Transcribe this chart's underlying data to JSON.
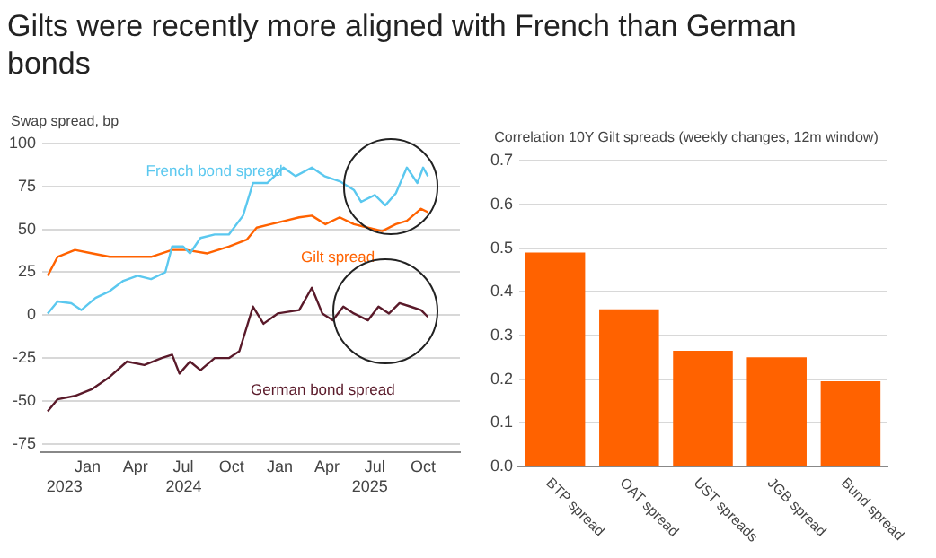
{
  "chart_data": [
    {
      "type": "line",
      "title": "Gilts were recently more aligned with French than German bonds",
      "ylabel": "Swap spread, bp",
      "xlim": [
        "2023-10-05",
        "2025-12-10"
      ],
      "ylim": [
        -80,
        100
      ],
      "yticks": [
        -75,
        -50,
        -25,
        0,
        25,
        50,
        75,
        100
      ],
      "xticks": [
        {
          "value": "2024-01-01",
          "label": "Jan"
        },
        {
          "value": "2024-04-01",
          "label": "Apr"
        },
        {
          "value": "2024-07-01",
          "label": "Jul"
        },
        {
          "value": "2024-10-01",
          "label": "Oct"
        },
        {
          "value": "2025-01-01",
          "label": "Jan"
        },
        {
          "value": "2025-04-01",
          "label": "Apr"
        },
        {
          "value": "2025-07-01",
          "label": "Jul"
        },
        {
          "value": "2025-10-01",
          "label": "Oct"
        }
      ],
      "annotations": [
        "2023",
        "2024",
        "2025"
      ],
      "grid": "y",
      "legend": false,
      "marker": "none",
      "line_style": "solid",
      "series": [
        {
          "name": "French bond spread",
          "color": "#5bc8ef",
          "x": [
            "2023-10-17",
            "2023-11-05",
            "2023-12-01",
            "2023-12-20",
            "2024-01-16",
            "2024-02-12",
            "2024-03-09",
            "2024-04-05",
            "2024-05-01",
            "2024-05-28",
            "2024-06-10",
            "2024-07-01",
            "2024-07-14",
            "2024-08-03",
            "2024-08-30",
            "2024-09-26",
            "2024-10-23",
            "2024-11-11",
            "2024-12-08",
            "2025-01-08",
            "2025-01-31",
            "2025-03-03",
            "2025-03-27",
            "2025-04-25",
            "2025-05-22",
            "2025-06-05",
            "2025-07-01",
            "2025-07-21",
            "2025-08-10",
            "2025-08-31",
            "2025-09-20",
            "2025-10-01",
            "2025-10-10"
          ],
          "values": [
            1,
            8,
            7,
            3,
            10,
            14,
            20,
            23,
            21,
            25,
            40,
            40,
            36,
            45,
            47,
            47,
            58,
            77,
            77,
            86,
            81,
            86,
            81,
            78,
            73,
            66,
            70,
            64,
            71,
            86,
            77,
            86,
            81
          ]
        },
        {
          "name": "Gilt spread",
          "color": "#ff6200",
          "x": [
            "2023-10-17",
            "2023-11-05",
            "2023-12-08",
            "2024-01-10",
            "2024-02-12",
            "2024-03-22",
            "2024-05-01",
            "2024-06-10",
            "2024-07-07",
            "2024-08-16",
            "2024-09-26",
            "2024-10-30",
            "2024-11-18",
            "2024-12-15",
            "2025-01-11",
            "2025-02-07",
            "2025-03-03",
            "2025-03-29",
            "2025-04-25",
            "2025-05-22",
            "2025-06-18",
            "2025-07-15",
            "2025-08-10",
            "2025-08-31",
            "2025-09-27",
            "2025-10-10"
          ],
          "values": [
            23,
            34,
            38,
            36,
            34,
            34,
            34,
            38,
            38,
            36,
            40,
            44,
            51,
            53,
            55,
            57,
            58,
            53,
            57,
            53,
            51,
            49,
            53,
            55,
            62,
            60
          ]
        },
        {
          "name": "German bond spread",
          "color": "#5a1a2a",
          "x": [
            "2023-10-17",
            "2023-11-05",
            "2023-12-08",
            "2024-01-10",
            "2024-02-12",
            "2024-03-16",
            "2024-04-18",
            "2024-05-21",
            "2024-06-10",
            "2024-06-24",
            "2024-07-14",
            "2024-08-03",
            "2024-08-30",
            "2024-09-26",
            "2024-10-16",
            "2024-11-11",
            "2024-12-01",
            "2024-12-28",
            "2025-02-07",
            "2025-03-03",
            "2025-03-23",
            "2025-04-12",
            "2025-05-02",
            "2025-05-22",
            "2025-06-18",
            "2025-07-08",
            "2025-07-28",
            "2025-08-17",
            "2025-09-07",
            "2025-09-27",
            "2025-10-10"
          ],
          "values": [
            -56,
            -49,
            -47,
            -43,
            -36,
            -27,
            -29,
            -25,
            -23,
            -34,
            -27,
            -32,
            -25,
            -25,
            -21,
            5,
            -5,
            1,
            3,
            16,
            1,
            -3,
            5,
            1,
            -3,
            5,
            1,
            7,
            5,
            3,
            -1
          ]
        }
      ]
    },
    {
      "type": "bar",
      "title": "Correlation 10Y Gilt spreads (weekly changes, 12m window)",
      "categories": [
        "BTP spread",
        "OAT spread",
        "UST spreads",
        "JGB spread",
        "Bund spread"
      ],
      "values": [
        0.49,
        0.36,
        0.265,
        0.25,
        0.195
      ],
      "color": "#ff6200",
      "ylim": [
        0,
        0.7
      ],
      "yticks": [
        {
          "value": 0,
          "label": "0.0"
        },
        0.1,
        0.2,
        0.3,
        0.4,
        0.5,
        0.6,
        0.7
      ],
      "grid": "y",
      "legend": false
    }
  ]
}
